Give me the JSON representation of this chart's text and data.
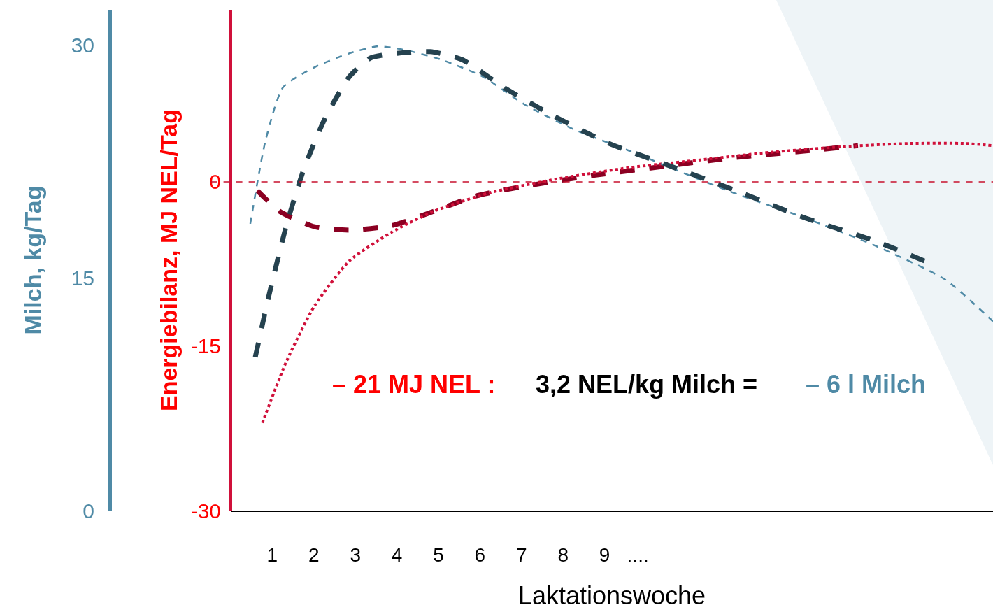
{
  "chart_data": {
    "type": "line",
    "xlabel": "Laktationswoche",
    "ylabel": "Energiebilanz, MJ NEL/Tag",
    "y2label": "Milch, kg/Tag",
    "xlim": [
      0,
      18.35
    ],
    "xticks": [
      1,
      2,
      3,
      4,
      5,
      6,
      7,
      8,
      9,
      {
        "value": 9.8,
        "label": "...."
      }
    ],
    "ylim": [
      -30,
      15.7
    ],
    "yticks": [
      -30,
      -15,
      0
    ],
    "y2lim": [
      0,
      32.3
    ],
    "y2ticks": [
      0,
      15,
      30
    ],
    "grid": false,
    "marker": "none",
    "series": [
      {
        "axis": "y2",
        "color": "#4f8aa6",
        "line_style": "dashed",
        "x": [
          0.47,
          0.84,
          1.26,
          2.02,
          2.86,
          3.54,
          4.21,
          5.05,
          6.06,
          7.07,
          8.25,
          9.6,
          10.6,
          12.1,
          13.8,
          15.5,
          17.2,
          18.35
        ],
        "values": [
          18.5,
          23.9,
          27.3,
          28.6,
          29.5,
          29.95,
          29.7,
          29.1,
          28.0,
          26.2,
          24.6,
          23.2,
          22.1,
          20.5,
          18.9,
          17.1,
          14.9,
          12.2
        ]
      },
      {
        "axis": "y2",
        "color": "#25424f",
        "line_style": "dashed",
        "x": [
          0.59,
          0.93,
          1.35,
          1.77,
          2.27,
          2.86,
          3.37,
          4.04,
          4.8,
          5.56,
          6.57,
          7.74,
          9.09,
          10.6,
          12.1,
          13.8,
          15.5,
          16.7
        ],
        "values": [
          9.9,
          14.0,
          18.5,
          22.1,
          25.3,
          28.0,
          29.2,
          29.5,
          29.6,
          29.1,
          27.3,
          25.5,
          23.7,
          22.2,
          20.7,
          18.9,
          17.4,
          16.1
        ]
      },
      {
        "axis": "y",
        "color": "#8b0022",
        "line_style": "dashed",
        "x": [
          0.64,
          1.18,
          2.02,
          2.86,
          3.87,
          4.88,
          5.89,
          7.07,
          8.75,
          10.4,
          12.1,
          13.8,
          15.1
        ],
        "values": [
          -0.8,
          -2.7,
          -4.1,
          -4.4,
          -4.0,
          -2.7,
          -1.3,
          -0.4,
          0.6,
          1.4,
          2.2,
          2.8,
          3.3
        ]
      },
      {
        "axis": "y",
        "color": "#d0103a",
        "line_style": "dotted",
        "x": [
          0.76,
          1.35,
          2.02,
          2.86,
          3.87,
          4.88,
          6.23,
          7.9,
          9.6,
          11.3,
          13.0,
          14.7,
          16.3,
          17.7,
          18.35
        ],
        "values": [
          -22.0,
          -16.3,
          -11.3,
          -7.2,
          -4.6,
          -2.7,
          -1.0,
          0.3,
          1.3,
          2.0,
          2.7,
          3.2,
          3.5,
          3.5,
          3.3
        ]
      }
    ],
    "ref_lines": [
      {
        "axis": "y",
        "value": 0,
        "color": "#c8102e",
        "line_style": "dashed"
      }
    ],
    "annotations": [
      "– 21 MJ NEL :",
      "3,2 NEL/kg Milch =",
      "– 6 l Milch"
    ]
  }
}
